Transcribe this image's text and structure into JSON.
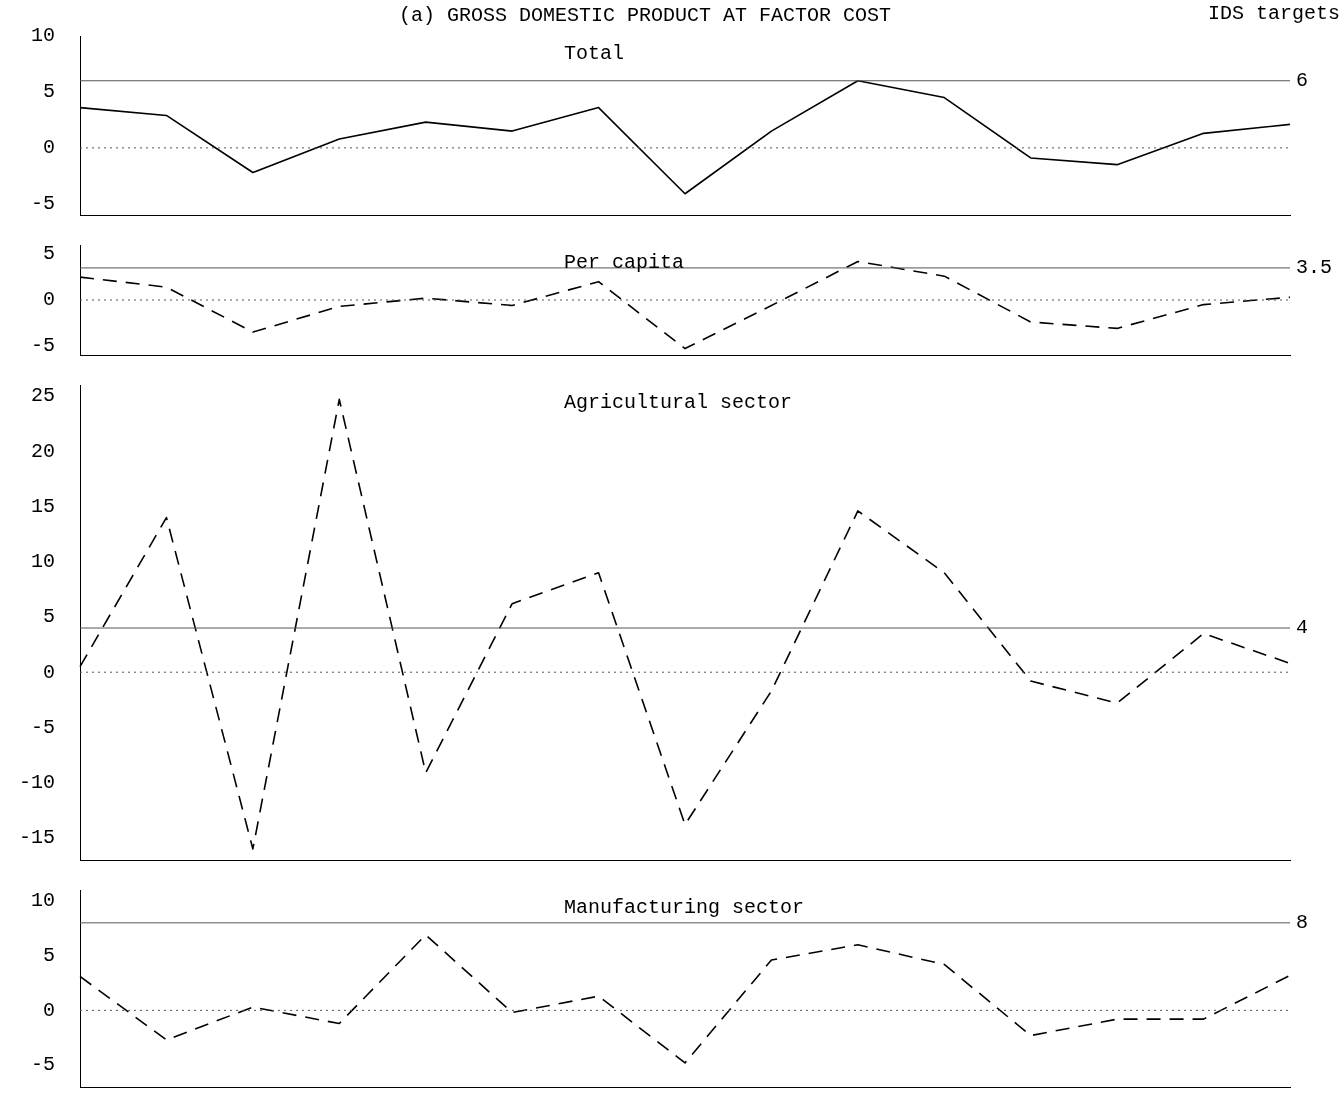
{
  "chart_data": [
    {
      "type": "line",
      "title": "(a) GROSS DOMESTIC PRODUCT AT FACTOR COST",
      "annotations": [
        "IDS targets"
      ],
      "categories": [
        null,
        null,
        null,
        null,
        null,
        null,
        null,
        null,
        null,
        null,
        null,
        null,
        null,
        null,
        null
      ],
      "series": [
        {
          "name": "Total",
          "color": "#000000",
          "line_style": "solid",
          "values": [
            3.6,
            2.9,
            -2.2,
            0.8,
            2.3,
            1.5,
            3.6,
            -4.1,
            1.5,
            6.0,
            4.5,
            -0.9,
            -1.5,
            1.3,
            2.1
          ]
        }
      ],
      "ylim": [
        -6,
        10
      ],
      "yticks": [
        -5,
        0,
        5,
        10
      ],
      "tick_labels": "y",
      "legend": false,
      "marker": "none",
      "ref_lines": [
        {
          "axis": "y",
          "value": 6,
          "label": "6",
          "line_style": "solid"
        },
        {
          "axis": "y",
          "value": 0,
          "line_style": "dotted"
        }
      ]
    },
    {
      "type": "line",
      "categories": [
        null,
        null,
        null,
        null,
        null,
        null,
        null,
        null,
        null,
        null,
        null,
        null,
        null,
        null,
        null
      ],
      "series": [
        {
          "name": "Per capita",
          "color": "#000000",
          "line_style": "dashed",
          "values": [
            2.5,
            1.4,
            -3.5,
            -0.7,
            0.2,
            -0.6,
            2.0,
            -5.3,
            -0.6,
            4.2,
            2.6,
            -2.4,
            -3.1,
            -0.5,
            0.3
          ]
        }
      ],
      "ylim": [
        -6,
        6
      ],
      "yticks": [
        -5,
        0,
        5
      ],
      "tick_labels": "y",
      "legend": false,
      "marker": "none",
      "ref_lines": [
        {
          "axis": "y",
          "value": 3.5,
          "label": "3.5",
          "line_style": "solid"
        },
        {
          "axis": "y",
          "value": 0,
          "line_style": "dotted"
        }
      ]
    },
    {
      "type": "line",
      "categories": [
        null,
        null,
        null,
        null,
        null,
        null,
        null,
        null,
        null,
        null,
        null,
        null,
        null,
        null,
        null
      ],
      "series": [
        {
          "name": "Agricultural sector",
          "color": "#000000",
          "line_style": "dashed",
          "values": [
            0.5,
            14,
            -16,
            24.7,
            -9.1,
            6.2,
            9,
            -13.8,
            -1.7,
            14.6,
            9,
            -0.8,
            -2.8,
            3.5,
            0.8
          ]
        }
      ],
      "ylim": [
        -17,
        26
      ],
      "yticks": [
        -15,
        -10,
        -5,
        0,
        5,
        10,
        15,
        20,
        25
      ],
      "tick_labels": "y",
      "legend": false,
      "marker": "none",
      "ref_lines": [
        {
          "axis": "y",
          "value": 4,
          "label": "4",
          "line_style": "solid"
        },
        {
          "axis": "y",
          "value": 0,
          "line_style": "dotted"
        }
      ]
    },
    {
      "type": "line",
      "categories": [
        null,
        null,
        null,
        null,
        null,
        null,
        null,
        null,
        null,
        null,
        null,
        null,
        null,
        null,
        null
      ],
      "series": [
        {
          "name": "Manufacturing sector",
          "color": "#000000",
          "line_style": "dashed",
          "values": [
            3.1,
            -2.7,
            0.3,
            -1.2,
            6.9,
            -0.2,
            1.3,
            -4.8,
            4.6,
            6.0,
            4.2,
            -2.3,
            -0.8,
            -0.8,
            3.2
          ]
        }
      ],
      "ylim": [
        -7,
        11
      ],
      "yticks": [
        -5,
        0,
        5,
        10
      ],
      "tick_labels": "y",
      "legend": false,
      "marker": "none",
      "ref_lines": [
        {
          "axis": "y",
          "value": 8,
          "label": "8",
          "line_style": "solid"
        },
        {
          "axis": "y",
          "value": 0,
          "line_style": "dotted"
        }
      ]
    }
  ]
}
